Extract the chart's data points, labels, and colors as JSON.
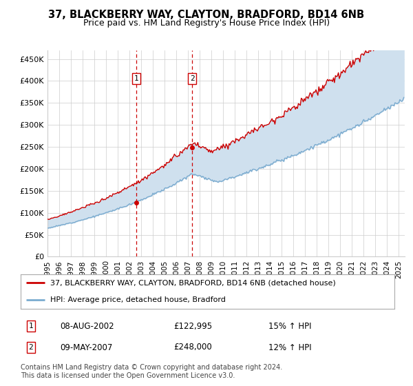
{
  "title": "37, BLACKBERRY WAY, CLAYTON, BRADFORD, BD14 6NB",
  "subtitle": "Price paid vs. HM Land Registry's House Price Index (HPI)",
  "ylabel_ticks": [
    "£0",
    "£50K",
    "£100K",
    "£150K",
    "£200K",
    "£250K",
    "£300K",
    "£350K",
    "£400K",
    "£450K"
  ],
  "ylim": [
    0,
    470000
  ],
  "xlim_start": 1995.0,
  "xlim_end": 2025.5,
  "legend_line1": "37, BLACKBERRY WAY, CLAYTON, BRADFORD, BD14 6NB (detached house)",
  "legend_line2": "HPI: Average price, detached house, Bradford",
  "transaction1_date": "08-AUG-2002",
  "transaction1_price": "£122,995",
  "transaction1_hpi": "15% ↑ HPI",
  "transaction1_x": 2002.6,
  "transaction1_y": 122995,
  "transaction2_date": "09-MAY-2007",
  "transaction2_price": "£248,000",
  "transaction2_hpi": "12% ↑ HPI",
  "transaction2_x": 2007.36,
  "transaction2_y": 248000,
  "red_line_color": "#cc0000",
  "blue_line_color": "#7aabcf",
  "shaded_color": "#cfe0ee",
  "footnote": "Contains HM Land Registry data © Crown copyright and database right 2024.\nThis data is licensed under the Open Government Licence v3.0.",
  "background_color": "#ffffff",
  "grid_color": "#cccccc",
  "box_color": "#cc0000"
}
